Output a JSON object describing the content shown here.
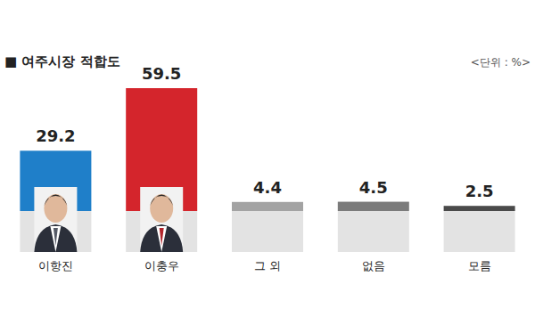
{
  "chart_data": {
    "type": "bar",
    "title": "■ 여주시장 적합도",
    "subtitle": "<단위 : %>",
    "categories": [
      "이항진",
      "이충우",
      "그 외",
      "없음",
      "모름"
    ],
    "values": [
      29.2,
      59.5,
      4.4,
      4.5,
      2.5
    ],
    "colors": [
      "#1f7fc9",
      "#d4252c",
      "#a3a3a3",
      "#7b7b7b",
      "#4a4a4a"
    ],
    "data_labels": true,
    "tick_labels": "x"
  }
}
